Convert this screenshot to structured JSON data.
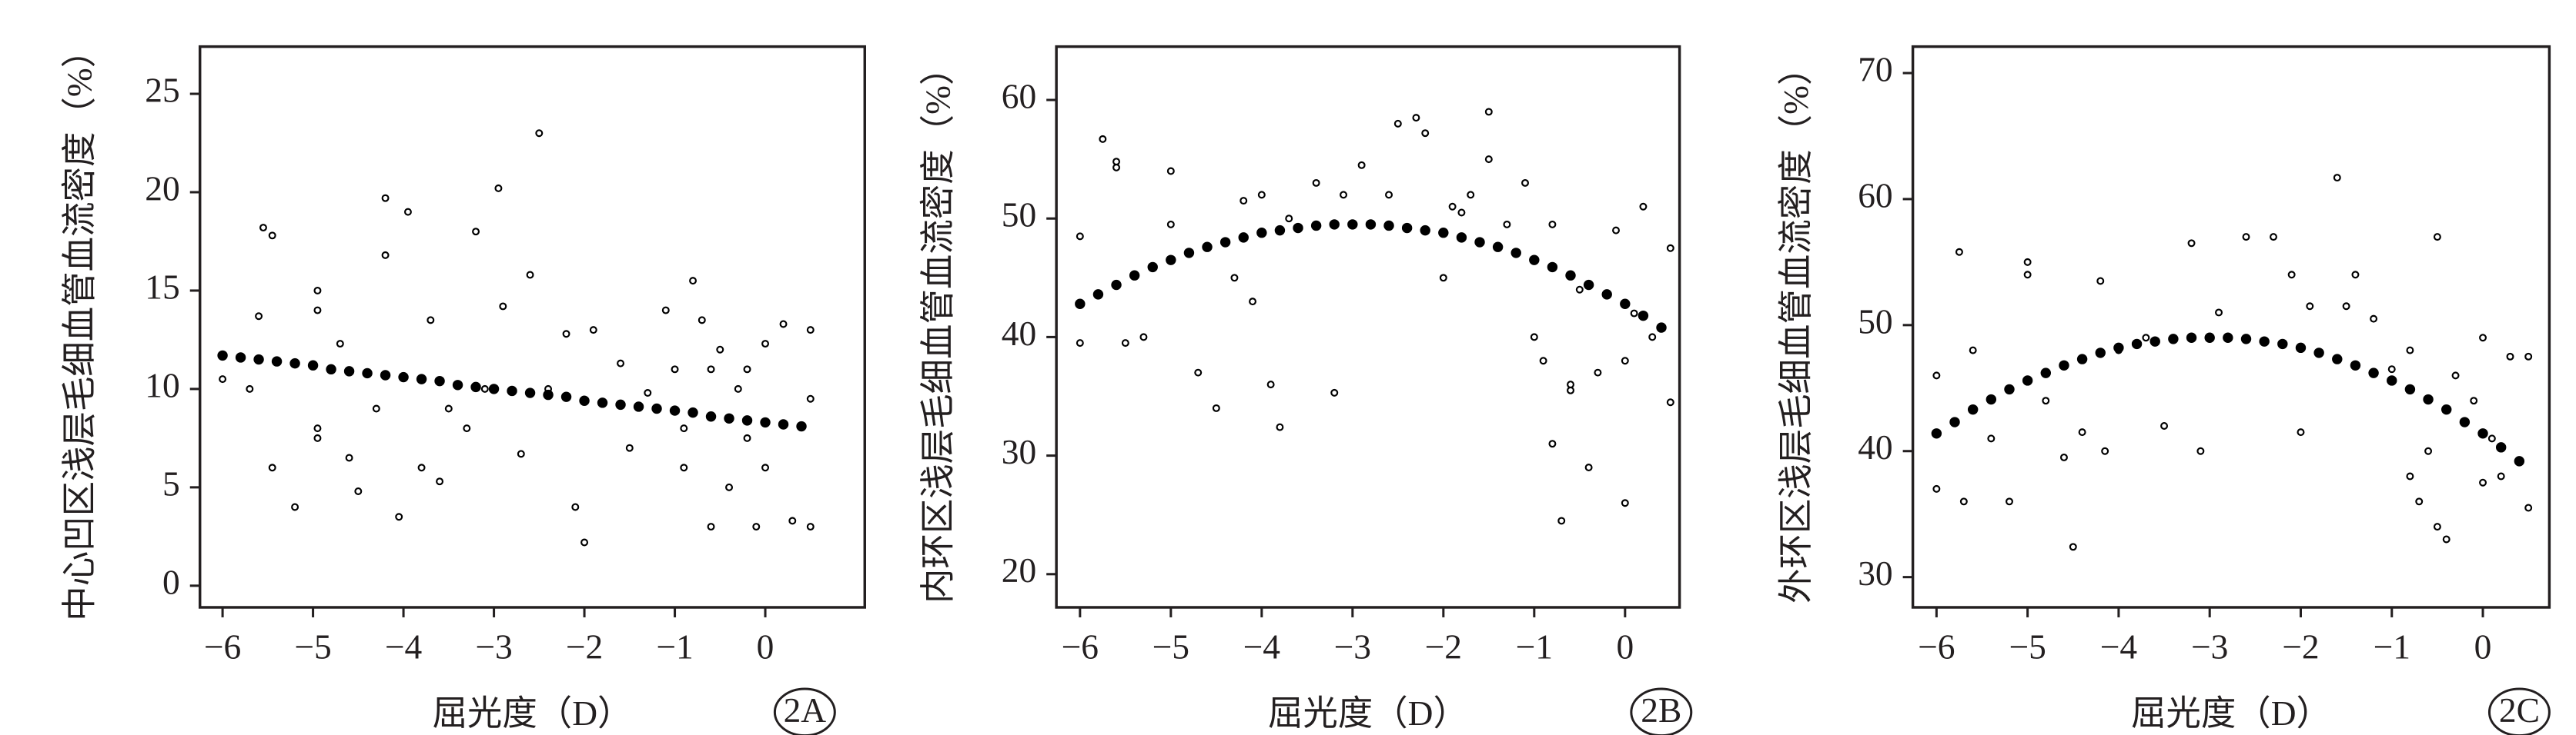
{
  "chart_data": [
    {
      "type": "scatter",
      "ylabel": "中心凹区浅层毛细血管血流密度（%）",
      "xlabel": "屈光度（D）",
      "tag": "2A",
      "xlim": [
        -6.25,
        1.1
      ],
      "ylim": [
        -1.1,
        27.4
      ],
      "xticks": [
        {
          "value": -6,
          "label": "−6"
        },
        {
          "value": -5,
          "label": "−5"
        },
        {
          "value": -4,
          "label": "−4"
        },
        {
          "value": -3,
          "label": "−3"
        },
        {
          "value": -2,
          "label": "−2"
        },
        {
          "value": -1,
          "label": "−1"
        },
        0
      ],
      "yticks": [
        0,
        5,
        10,
        15,
        20,
        25
      ],
      "series": [
        {
          "color": "#000000",
          "marker": "open",
          "x": [
            -6,
            -5.7,
            -5.6,
            -5.55,
            -5.45,
            -5.45,
            -5.2,
            -4.95,
            -4.95,
            -4.95,
            -4.95,
            -4.7,
            -4.6,
            -4.5,
            -4.3,
            -4.2,
            -4.2,
            -4.05,
            -3.95,
            -3.8,
            -3.7,
            -3.6,
            -3.5,
            -3.2,
            -3.1,
            -2.95,
            -2.9,
            -2.7,
            -2.6,
            -2.5,
            -2.4,
            -2.2,
            -2.1,
            -2,
            -1.9,
            -1.5,
            -1.3,
            -1.1,
            -1,
            -0.9,
            -0.8,
            -0.7,
            -0.6,
            -0.6,
            -0.5,
            -0.4,
            -0.3,
            -0.2,
            -0.1,
            0,
            0,
            0.2,
            0.3,
            0.5,
            0.5,
            0.5,
            -0.9,
            -1.6,
            -3.3,
            -0.2
          ],
          "values": [
            10.5,
            10,
            13.7,
            18.2,
            17.8,
            6,
            4,
            15,
            14,
            8,
            7.5,
            12.3,
            6.5,
            4.8,
            9,
            19.7,
            16.8,
            3.5,
            19,
            6,
            13.5,
            5.3,
            9,
            18,
            10,
            20.2,
            14.2,
            6.7,
            15.8,
            23,
            10,
            12.8,
            4,
            2.2,
            13,
            7,
            9.8,
            14,
            11,
            6,
            15.5,
            13.5,
            11,
            3,
            12,
            5,
            10,
            11,
            3,
            12.3,
            6,
            13.3,
            3.3,
            13,
            3,
            9.5,
            8,
            11.3,
            8,
            7.5
          ]
        },
        {
          "color": "#000000",
          "marker": "filled",
          "x": [
            -6,
            -5.8,
            -5.6,
            -5.4,
            -5.2,
            -5,
            -4.8,
            -4.6,
            -4.4,
            -4.2,
            -4,
            -3.8,
            -3.6,
            -3.4,
            -3.2,
            -3,
            -2.8,
            -2.6,
            -2.4,
            -2.2,
            -2,
            -1.8,
            -1.6,
            -1.4,
            -1.2,
            -1,
            -0.8,
            -0.6,
            -0.4,
            -0.2,
            0,
            0.2,
            0.4
          ],
          "values": [
            11.7,
            11.6,
            11.5,
            11.4,
            11.3,
            11.2,
            11.0,
            10.9,
            10.8,
            10.7,
            10.6,
            10.5,
            10.4,
            10.2,
            10.1,
            10.0,
            9.9,
            9.8,
            9.7,
            9.6,
            9.4,
            9.3,
            9.2,
            9.1,
            9.0,
            8.9,
            8.8,
            8.6,
            8.5,
            8.4,
            8.3,
            8.2,
            8.1
          ]
        }
      ]
    },
    {
      "type": "scatter",
      "ylabel": "内环区浅层毛细血管血流密度（%）",
      "xlabel": "屈光度（D）",
      "tag": "2B",
      "xlim": [
        -6.26,
        0.6
      ],
      "ylim": [
        17.2,
        64.5
      ],
      "xticks": [
        {
          "value": -6,
          "label": "−6"
        },
        {
          "value": -5,
          "label": "−5"
        },
        {
          "value": -4,
          "label": "−4"
        },
        {
          "value": -3,
          "label": "−3"
        },
        {
          "value": -2,
          "label": "−2"
        },
        {
          "value": -1,
          "label": "−1"
        },
        0
      ],
      "yticks": [
        20,
        30,
        40,
        50,
        60
      ],
      "series": [
        {
          "color": "#000000",
          "marker": "open",
          "x": [
            -6,
            -6,
            -5.75,
            -5.6,
            -5.6,
            -5.5,
            -5.3,
            -5,
            -5,
            -4.7,
            -4.5,
            -4.3,
            -4.2,
            -4.1,
            -4,
            -3.9,
            -3.8,
            -3.7,
            -3.4,
            -3.2,
            -3.1,
            -2.9,
            -2.6,
            -2.5,
            -2.3,
            -2.2,
            -2,
            -1.9,
            -1.7,
            -1.5,
            -1.5,
            -1.3,
            -1.1,
            -0.9,
            -0.8,
            -0.8,
            -0.7,
            -0.6,
            -0.5,
            -0.4,
            -0.3,
            -0.1,
            0,
            0,
            0.2,
            0.3,
            0.5,
            0.5,
            -1.8,
            -1,
            -0.6,
            0.1
          ],
          "values": [
            48.5,
            39.5,
            56.7,
            54.8,
            54.3,
            39.5,
            40,
            54,
            49.5,
            37,
            34,
            45,
            51.5,
            43,
            52,
            36,
            32.4,
            50,
            53,
            35.3,
            52,
            54.5,
            52,
            58,
            58.5,
            57.2,
            45,
            51,
            52,
            59,
            55,
            49.5,
            53,
            38,
            49.5,
            31,
            24.5,
            36,
            44,
            29,
            37,
            49,
            26,
            38,
            51,
            40,
            47.5,
            34.5,
            50.5,
            40,
            35.5,
            42
          ]
        },
        {
          "color": "#000000",
          "marker": "filled",
          "x": [
            -6,
            -5.8,
            -5.6,
            -5.4,
            -5.2,
            -5,
            -4.8,
            -4.6,
            -4.4,
            -4.2,
            -4,
            -3.8,
            -3.6,
            -3.4,
            -3.2,
            -3,
            -2.8,
            -2.6,
            -2.4,
            -2.2,
            -2,
            -1.8,
            -1.6,
            -1.4,
            -1.2,
            -1,
            -0.8,
            -0.6,
            -0.4,
            -0.2,
            0,
            0.2,
            0.4
          ],
          "values": [
            42.8,
            43.6,
            44.4,
            45.2,
            45.9,
            46.5,
            47.1,
            47.6,
            48.0,
            48.4,
            48.8,
            49.0,
            49.2,
            49.4,
            49.5,
            49.5,
            49.5,
            49.4,
            49.2,
            49.0,
            48.8,
            48.4,
            48.0,
            47.6,
            47.1,
            46.5,
            45.9,
            45.2,
            44.4,
            43.6,
            42.8,
            41.8,
            40.8
          ]
        }
      ]
    },
    {
      "type": "scatter",
      "ylabel": "外环区浅层毛细血管血流密度（%）",
      "xlabel": "屈光度（D）",
      "tag": "2C",
      "xlim": [
        -6.26,
        0.73
      ],
      "ylim": [
        27.6,
        72.1
      ],
      "xticks": [
        {
          "value": -6,
          "label": "−6"
        },
        {
          "value": -5,
          "label": "−5"
        },
        {
          "value": -4,
          "label": "−4"
        },
        {
          "value": -3,
          "label": "−3"
        },
        {
          "value": -2,
          "label": "−2"
        },
        {
          "value": -1,
          "label": "−1"
        },
        0
      ],
      "yticks": [
        30,
        40,
        50,
        60,
        70
      ],
      "series": [
        {
          "color": "#000000",
          "marker": "open",
          "x": [
            -6,
            -6,
            -5.75,
            -5.7,
            -5.6,
            -5.4,
            -5.2,
            -5,
            -5,
            -4.8,
            -4.6,
            -4.5,
            -4.4,
            -4.2,
            -4.15,
            -4,
            -3.7,
            -3.5,
            -3.2,
            -3.1,
            -2.9,
            -2.6,
            -2.3,
            -2.1,
            -2,
            -1.9,
            -1.6,
            -1.4,
            -1.2,
            -1,
            -0.8,
            -0.8,
            -0.7,
            -0.5,
            -0.5,
            -0.4,
            -0.3,
            -0.1,
            0,
            0,
            0.2,
            0.3,
            0.5,
            0.5,
            -1.5,
            -0.6,
            0.1
          ],
          "values": [
            46,
            37,
            55.8,
            36,
            48,
            41,
            36,
            55,
            54,
            44,
            39.5,
            32.4,
            41.5,
            53.5,
            40,
            48,
            49,
            42,
            56.5,
            40,
            51,
            57,
            57,
            54,
            41.5,
            51.5,
            61.7,
            54,
            50.5,
            46.5,
            48,
            38,
            36,
            57,
            34,
            33,
            46,
            44,
            49,
            37.5,
            38,
            47.5,
            47.5,
            35.5,
            51.5,
            40,
            41
          ]
        },
        {
          "color": "#000000",
          "marker": "filled",
          "x": [
            -6,
            -5.8,
            -5.6,
            -5.4,
            -5.2,
            -5,
            -4.8,
            -4.6,
            -4.4,
            -4.2,
            -4,
            -3.8,
            -3.6,
            -3.4,
            -3.2,
            -3,
            -2.8,
            -2.6,
            -2.4,
            -2.2,
            -2,
            -1.8,
            -1.6,
            -1.4,
            -1.2,
            -1,
            -0.8,
            -0.6,
            -0.4,
            -0.2,
            0,
            0.2,
            0.4
          ],
          "values": [
            41.4,
            42.3,
            43.3,
            44.1,
            44.9,
            45.6,
            46.2,
            46.8,
            47.3,
            47.8,
            48.2,
            48.5,
            48.7,
            48.9,
            49.0,
            49.0,
            49.0,
            48.9,
            48.7,
            48.5,
            48.2,
            47.8,
            47.3,
            46.8,
            46.2,
            45.6,
            44.9,
            44.1,
            43.3,
            42.3,
            41.4,
            40.3,
            39.2
          ]
        }
      ]
    }
  ]
}
